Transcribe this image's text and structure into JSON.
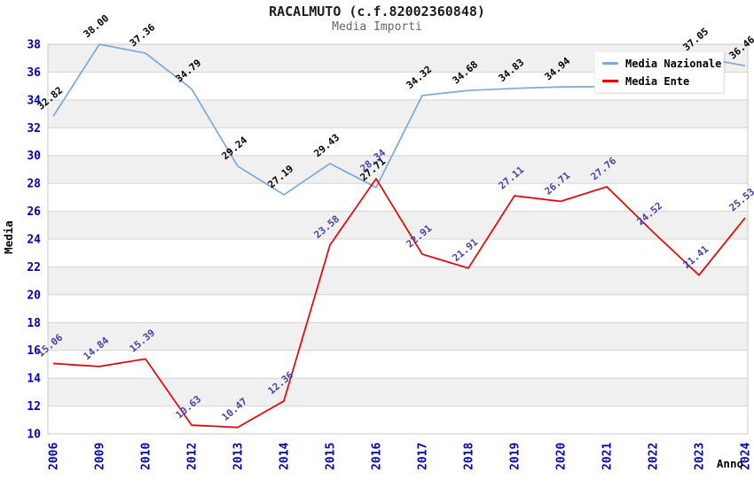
{
  "header": {
    "title": "RACALMUTO (c.f.82002360848)",
    "subtitle": "Media Importi"
  },
  "chart_data": {
    "type": "line",
    "x": [
      "2006",
      "2009",
      "2010",
      "2012",
      "2013",
      "2014",
      "2015",
      "2016",
      "2017",
      "2018",
      "2019",
      "2020",
      "2021",
      "2022",
      "2023",
      "2024"
    ],
    "xlabel": "Anno",
    "ylabel": "Media",
    "ylim": [
      10,
      38
    ],
    "ytick_step": 2,
    "grid": true,
    "band_fill_on": true,
    "legend_position": "top-right",
    "series": [
      {
        "name": "Media Nazionale",
        "color": "#7aa9dc",
        "label_color": "#000000",
        "values": [
          32.82,
          38.0,
          37.36,
          34.79,
          29.24,
          27.19,
          29.43,
          27.71,
          34.32,
          34.68,
          34.83,
          34.94,
          34.95,
          35.95,
          37.05,
          36.46
        ],
        "labels": [
          "32.82",
          "38.00",
          "37.36",
          "34.79",
          "29.24",
          "27.19",
          "29.43",
          "27.71",
          "34.32",
          "34.68",
          "34.83",
          "34.94",
          "",
          "",
          "37.05",
          "36.46"
        ]
      },
      {
        "name": "Media Ente",
        "color": "#ee0000",
        "label_color": "#4444aa",
        "values": [
          15.06,
          14.84,
          15.39,
          10.63,
          10.47,
          12.36,
          23.58,
          28.34,
          22.91,
          21.91,
          27.11,
          26.71,
          27.76,
          24.52,
          21.41,
          25.53
        ],
        "labels": [
          "15.06",
          "14.84",
          "15.39",
          "10.63",
          "10.47",
          "12.36",
          "23.58",
          "28.34",
          "22.91",
          "21.91",
          "27.11",
          "26.71",
          "27.76",
          "24.52",
          "21.41",
          "25.53"
        ]
      }
    ]
  },
  "colors": {
    "axis_tick": "#0000cc",
    "axis_title": "#000000",
    "band": "#f0f0f0",
    "gridline": "#d4d4d4",
    "plot_border": "#c8c8c8"
  }
}
